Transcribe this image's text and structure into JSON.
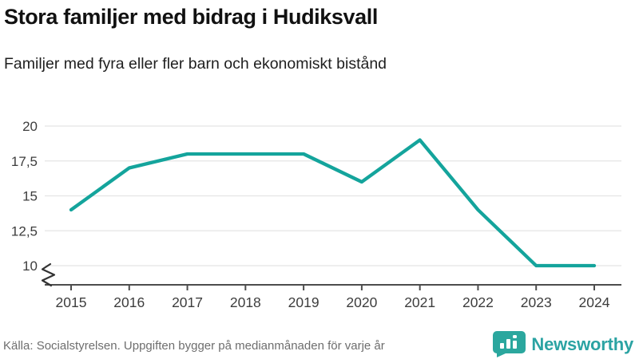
{
  "header": {
    "title": "Stora familjer med bidrag i Hudiksvall",
    "subtitle": "Familjer med fyra eller fler barn och ekonomiskt bistånd"
  },
  "footer": {
    "source": "Källa: Socialstyrelsen. Uppgiften bygger på medianmånaden för varje år",
    "brand": "Newsworthy"
  },
  "colors": {
    "line": "#14a49c",
    "grid": "#e4e4e4",
    "axis": "#4d4d4d",
    "tick_label": "#3d3d3d",
    "break_mark": "#333333",
    "brand": "#2ba3a3"
  },
  "chart_data": {
    "type": "line",
    "title": "Stora familjer med bidrag i Hudiksvall",
    "subtitle": "Familjer med fyra eller fler barn och ekonomiskt bistånd",
    "categories": [
      "2015",
      "2016",
      "2017",
      "2018",
      "2019",
      "2020",
      "2021",
      "2022",
      "2023",
      "2024"
    ],
    "series": [
      {
        "name": "Familjer med fyra eller fler barn och ekonomiskt bistånd",
        "values": [
          14,
          17,
          18,
          18,
          18,
          16,
          19,
          14,
          10,
          10
        ]
      }
    ],
    "xlabel": "",
    "ylabel": "",
    "ylim": [
      10,
      20
    ],
    "yticks": [
      {
        "value": 20,
        "label": "20"
      },
      {
        "value": 17.5,
        "label": "17,5"
      },
      {
        "value": 15,
        "label": "15"
      },
      {
        "value": 12.5,
        "label": "12,5"
      },
      {
        "value": 10,
        "label": "10"
      }
    ],
    "grid": true,
    "legend": false,
    "axis_break": true
  }
}
